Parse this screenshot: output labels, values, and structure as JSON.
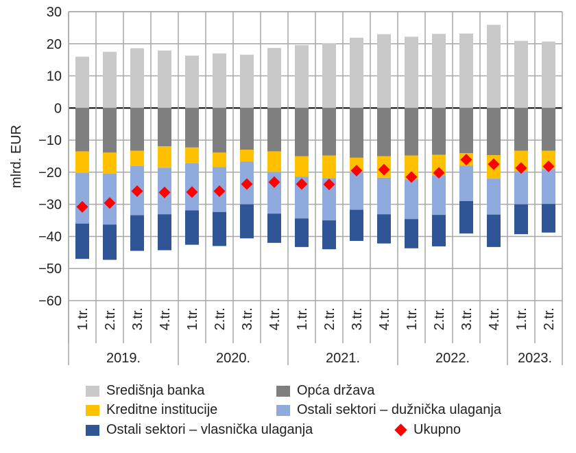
{
  "chart_data": {
    "type": "bar",
    "stacked": true,
    "ylabel": "mlrd. EUR",
    "ylim": [
      -60,
      30
    ],
    "yticks": [
      30,
      20,
      10,
      0,
      -10,
      -20,
      -30,
      -40,
      -50,
      -60
    ],
    "grid": true,
    "legend_position": "bottom",
    "categories": [
      "1.tr.",
      "2.tr.",
      "3.tr.",
      "4.tr.",
      "1.tr.",
      "2.tr.",
      "3.tr.",
      "4.tr.",
      "1.tr.",
      "2.tr.",
      "3.tr.",
      "4.tr.",
      "1.tr.",
      "2.tr.",
      "3.tr.",
      "4.tr.",
      "1.tr.",
      "2.tr."
    ],
    "groups": [
      {
        "label": "2019.",
        "count": 4
      },
      {
        "label": "2020.",
        "count": 4
      },
      {
        "label": "2021.",
        "count": 4
      },
      {
        "label": "2022.",
        "count": 4
      },
      {
        "label": "2023.",
        "count": 2
      }
    ],
    "series": [
      {
        "name": "Središnja banka",
        "color": "#c9c9c9",
        "values": [
          16.0,
          17.5,
          18.6,
          17.9,
          16.3,
          17.0,
          16.6,
          18.7,
          19.6,
          20.2,
          21.9,
          23.0,
          22.2,
          23.1,
          23.2,
          25.9,
          20.9,
          20.7
        ]
      },
      {
        "name": "Opća država",
        "color": "#7f7f7f",
        "values": [
          -13.5,
          -13.9,
          -13.3,
          -11.9,
          -12.3,
          -13.9,
          -13.0,
          -13.5,
          -15.0,
          -14.8,
          -15.5,
          -15.0,
          -14.8,
          -14.6,
          -14.1,
          -14.7,
          -13.3,
          -13.3
        ]
      },
      {
        "name": "Kreditne institucije",
        "color": "#ffc000",
        "values": [
          -6.7,
          -6.5,
          -4.8,
          -6.7,
          -4.9,
          -4.5,
          -3.7,
          -6.4,
          -6.4,
          -7.0,
          -4.4,
          -6.7,
          -7.4,
          -6.4,
          -3.9,
          -7.3,
          -6.4,
          -5.7
        ]
      },
      {
        "name": "Ostali sektori – dužnička ulaganja",
        "color": "#8faadc",
        "values": [
          -15.8,
          -15.9,
          -15.3,
          -14.5,
          -14.7,
          -14.0,
          -13.3,
          -13.0,
          -13.0,
          -13.2,
          -11.8,
          -11.4,
          -12.4,
          -12.3,
          -11.0,
          -11.2,
          -10.3,
          -10.9
        ]
      },
      {
        "name": "Ostali sektori – vlasnička ulaganja",
        "color": "#2f5597",
        "values": [
          -11.0,
          -11.0,
          -11.1,
          -11.2,
          -10.7,
          -10.6,
          -10.6,
          -9.1,
          -8.9,
          -9.0,
          -9.7,
          -9.1,
          -9.1,
          -9.8,
          -10.1,
          -10.1,
          -9.3,
          -8.9
        ]
      }
    ],
    "total": {
      "name": "Ukupno",
      "color": "#ff0000",
      "marker": "diamond",
      "values": [
        -30.8,
        -29.6,
        -25.9,
        -26.3,
        -26.2,
        -25.9,
        -23.7,
        -23.1,
        -23.7,
        -23.8,
        -19.5,
        -19.2,
        -21.5,
        -20.2,
        -16.1,
        -17.5,
        -18.7,
        -18.2
      ]
    }
  }
}
